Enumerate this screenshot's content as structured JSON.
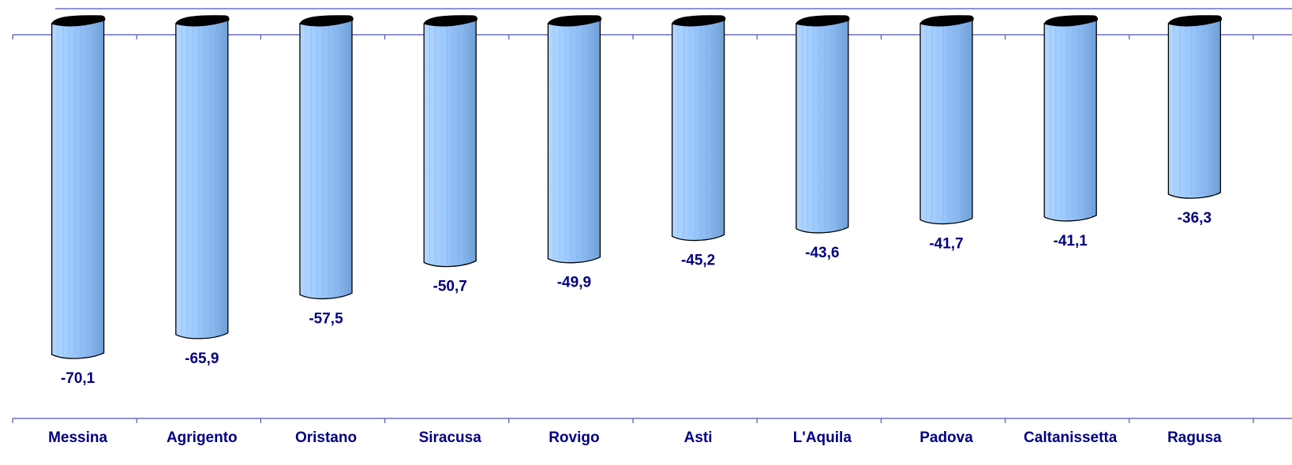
{
  "chart_data": {
    "type": "bar",
    "categories": [
      "Messina",
      "Agrigento",
      "Oristano",
      "Siracusa",
      "Rovigo",
      "Asti",
      "L'Aquila",
      "Padova",
      "Caltanissetta",
      "Ragusa"
    ],
    "values": [
      -70.1,
      -65.9,
      -57.5,
      -50.7,
      -49.9,
      -45.2,
      -43.6,
      -41.7,
      -41.1,
      -36.3
    ],
    "value_labels": [
      "-70,1",
      "-65,9",
      "-57,5",
      "-50,7",
      "-49,9",
      "-45,2",
      "-43,6",
      "-41,7",
      "-41,1",
      "-36,3"
    ],
    "title": "",
    "xlabel": "",
    "ylabel": "",
    "ylim": [
      -75,
      0
    ],
    "grid": false,
    "legend": "none",
    "colors": {
      "bar_light": "#9ecbff",
      "bar_dark": "#6f9fd6",
      "bar_top": "#000000",
      "axis": "#4a55b5",
      "label_text": "#000080"
    }
  }
}
